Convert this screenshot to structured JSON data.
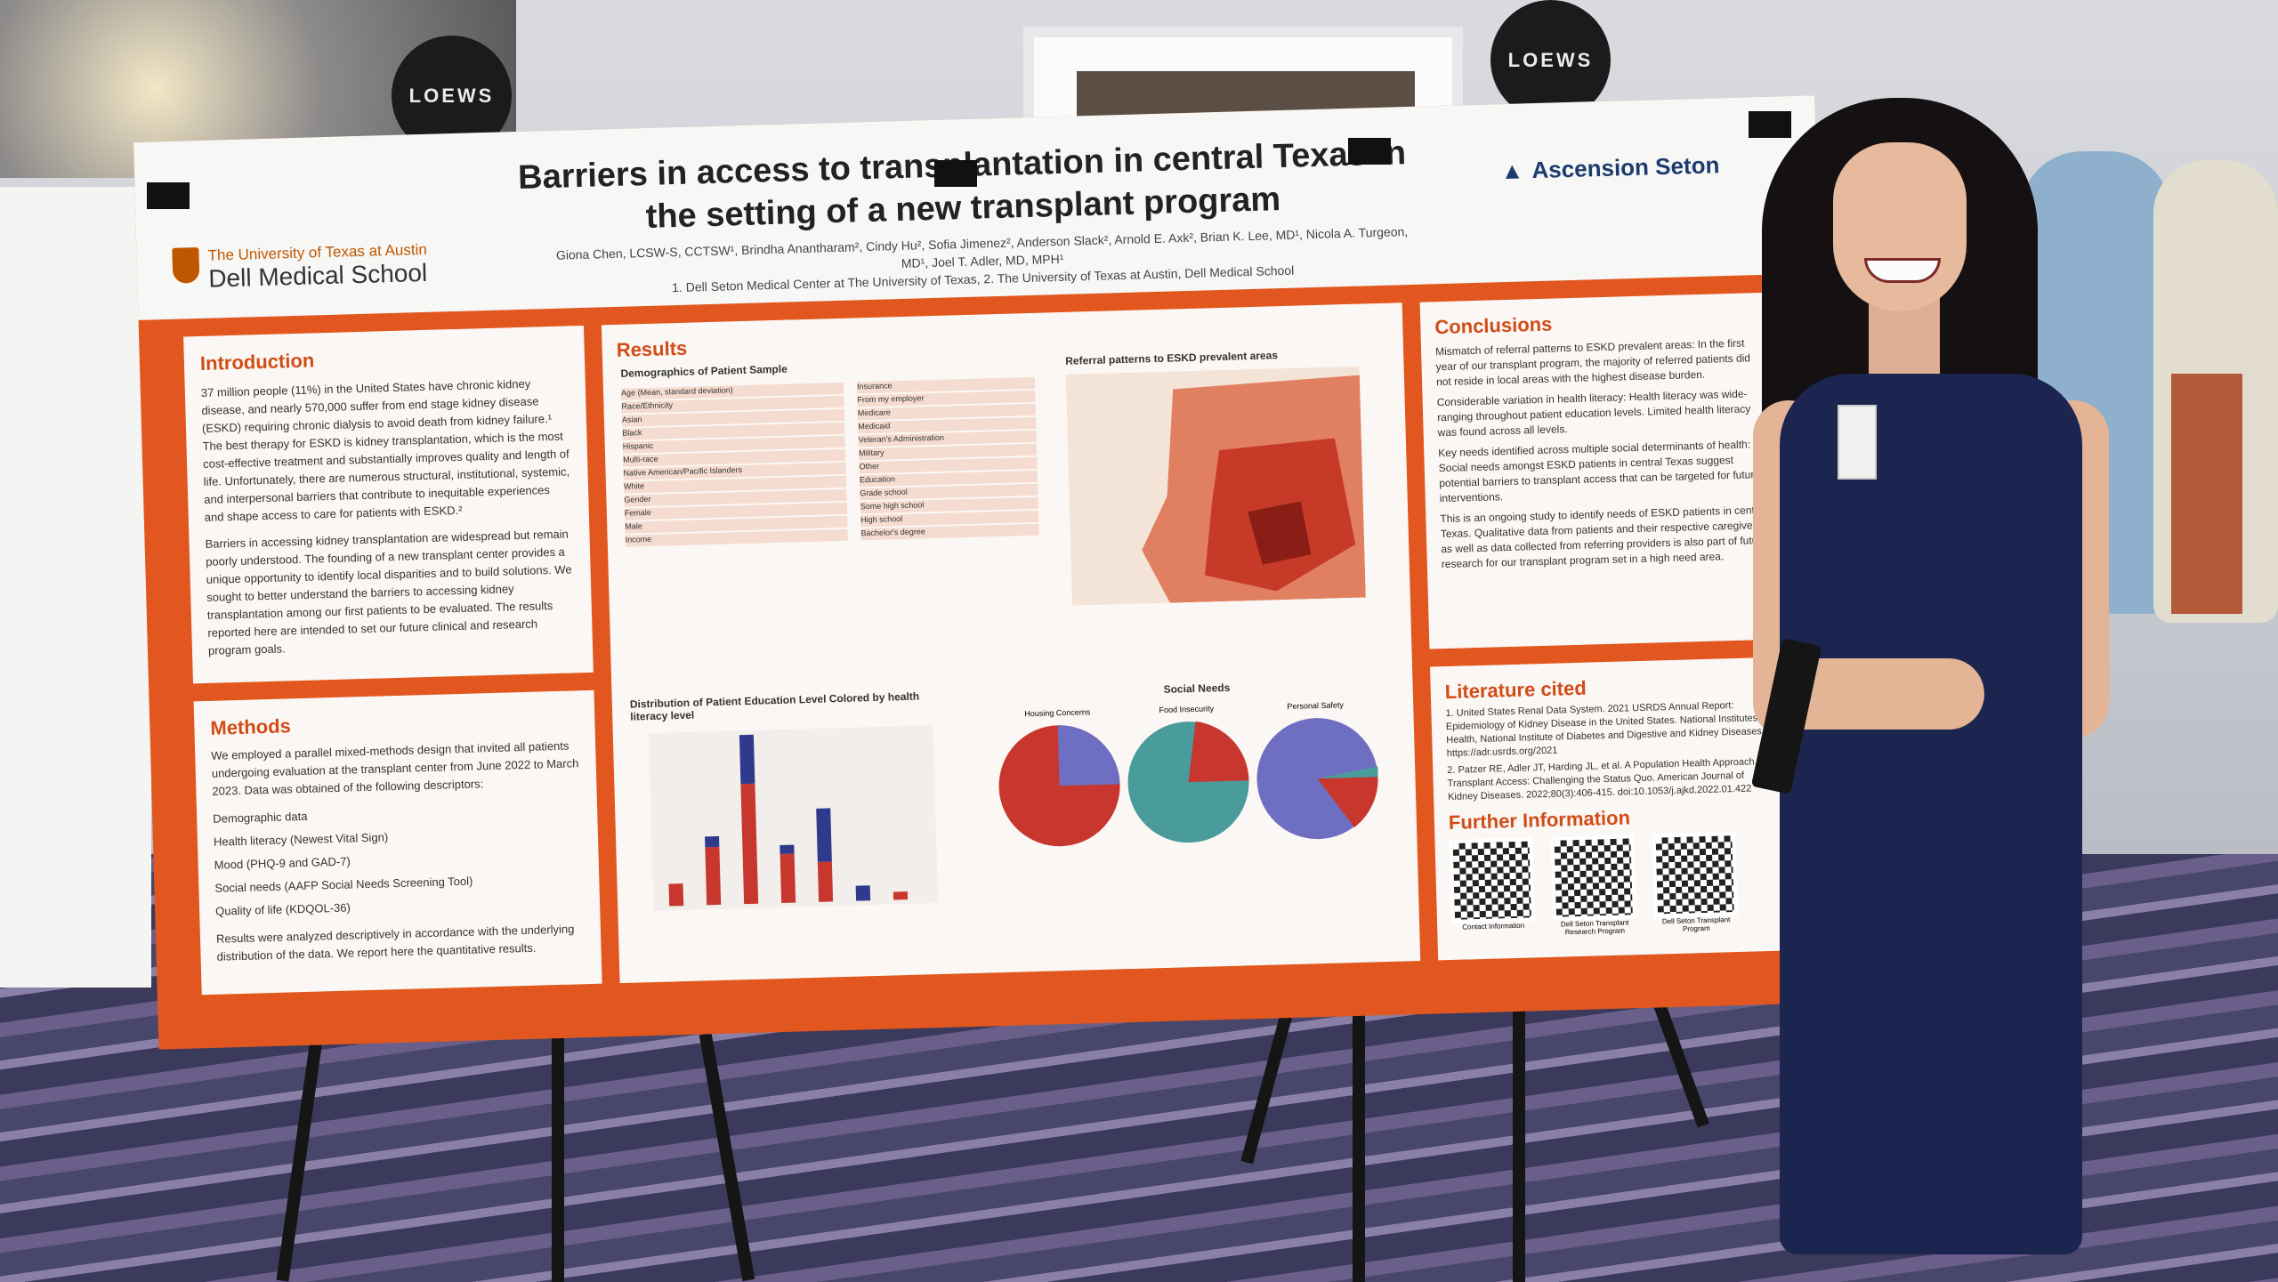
{
  "signs": [
    "LOEWS",
    "LOEWS"
  ],
  "poster": {
    "title": "Barriers in access to transplantation in central Texas in the setting of a new transplant program",
    "institution_line1": "The University of Texas at Austin",
    "institution_line2": "Dell Medical School",
    "partner": "Ascension Seton",
    "authors": "Giona Chen, LCSW-S, CCTSW¹, Brindha Anantharam², Cindy Hu², Sofia Jimenez², Anderson Slack², Arnold E. Axk², Brian K. Lee, MD¹, Nicola A. Turgeon, MD¹, Joel T. Adler, MD, MPH¹",
    "affiliations": "1. Dell Seton Medical Center at The University of Texas, 2. The University of Texas at Austin, Dell Medical School",
    "introduction": {
      "heading": "Introduction",
      "p1": "37 million people (11%) in the United States have chronic kidney disease, and nearly 570,000 suffer from end stage kidney disease (ESKD) requiring chronic dialysis to avoid death from kidney failure.¹ The best therapy for ESKD is kidney transplantation, which is the most cost-effective treatment and substantially improves quality and length of life. Unfortunately, there are numerous structural, institutional, systemic, and interpersonal barriers that contribute to inequitable experiences and shape access to care for patients with ESKD.²",
      "p2": "Barriers in accessing kidney transplantation are widespread but remain poorly understood. The founding of a new transplant center provides a unique opportunity to identify local disparities and to build solutions. We sought to better understand the barriers to accessing kidney transplantation among our first patients to be evaluated. The results reported here are intended to set our future clinical and research program goals."
    },
    "methods": {
      "heading": "Methods",
      "p1": "We employed a parallel mixed-methods design that invited all patients undergoing evaluation at the transplant center from June 2022 to March 2023. Data was obtained of the following descriptors:",
      "items": [
        "Demographic data",
        "Health literacy (Newest Vital Sign)",
        "Mood (PHQ-9 and GAD-7)",
        "Social needs (AAFP Social Needs Screening Tool)",
        "Quality of life (KDQOL-36)"
      ],
      "p2": "Results were analyzed descriptively in accordance with the underlying distribution of the data. We report here the quantitative results."
    },
    "results": {
      "heading": "Results",
      "demographics_title": "Demographics of Patient Sample",
      "referral_title": "Referral patterns to ESKD prevalent areas",
      "education_title": "Distribution of Patient Education Level Colored by health literacy level",
      "social_title": "Social Needs",
      "pie_labels": [
        "Housing Concerns",
        "Food Insecurity",
        "Personal Safety"
      ],
      "table_rows": [
        "Age (Mean, standard deviation)",
        "Race/Ethnicity",
        "Asian",
        "Black",
        "Hispanic",
        "Multi-race",
        "Native American/Pacific Islanders",
        "White",
        "Gender",
        "Female",
        "Male",
        "Income"
      ],
      "table_rows_right": [
        "Insurance",
        "From my employer",
        "Medicare",
        "Medicaid",
        "Veteran's Administration",
        "Military",
        "Other",
        "Education",
        "Grade school",
        "Some high school",
        "High school",
        "Bachelor's degree"
      ]
    },
    "conclusions": {
      "heading": "Conclusions",
      "items": [
        "Mismatch of referral patterns to ESKD prevalent areas: In the first year of our transplant program, the majority of referred patients did not reside in local areas with the highest disease burden.",
        "Considerable variation in health literacy: Health literacy was wide-ranging throughout patient education levels. Limited health literacy was found across all levels.",
        "Key needs identified across multiple social determinants of health: Social needs amongst ESKD patients in central Texas suggest potential barriers to transplant access that can be targeted for future interventions."
      ],
      "p1": "This is an ongoing study to identify needs of ESKD patients in central Texas. Qualitative data from patients and their respective caregivers as well as data collected from referring providers is also part of future research for our transplant program set in a high need area."
    },
    "literature": {
      "heading": "Literature cited",
      "p1": "1. United States Renal Data System. 2021 USRDS Annual Report: Epidemiology of Kidney Disease in the United States. National Institutes of Health, National Institute of Diabetes and Digestive and Kidney Diseases https://adr.usrds.org/2021",
      "p2": "2. Patzer RE, Adler JT, Harding JL, et al. A Population Health Approach to Transplant Access: Challenging the Status Quo. American Journal of Kidney Diseases. 2022;80(3):406-415. doi:10.1053/j.ajkd.2022.01.422"
    },
    "further": {
      "heading": "Further Information",
      "qr_labels": [
        "Contact Information",
        "Dell Seton Transplant Research Program",
        "Dell Seton Transplant Program"
      ]
    }
  },
  "colors": {
    "poster_orange": "#e2571f",
    "ut_orange": "#bf5700",
    "dress_navy": "#1c2550",
    "bar_red": "#c8372e",
    "bar_blue": "#303a8c",
    "pie_teal": "#4a9b9b",
    "pie_purple": "#6e6fc2"
  }
}
